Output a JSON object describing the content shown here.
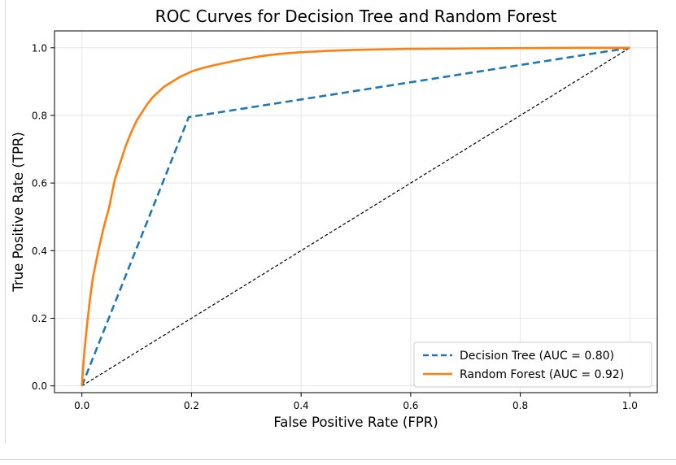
{
  "chart_data": {
    "type": "line",
    "title": "ROC Curves for Decision Tree and Random Forest",
    "xlabel": "False Positive Rate (FPR)",
    "ylabel": "True Positive Rate (TPR)",
    "xlim": [
      -0.05,
      1.05
    ],
    "ylim": [
      -0.02,
      1.05
    ],
    "xticks": [
      0.0,
      0.2,
      0.4,
      0.6,
      0.8,
      1.0
    ],
    "yticks": [
      0.0,
      0.2,
      0.4,
      0.6,
      0.8,
      1.0
    ],
    "xtick_labels": [
      "0.0",
      "0.2",
      "0.4",
      "0.6",
      "0.8",
      "1.0"
    ],
    "ytick_labels": [
      "0.0",
      "0.2",
      "0.4",
      "0.6",
      "0.8",
      "1.0"
    ],
    "grid": true,
    "legend_position": "lower-right",
    "series": [
      {
        "name": "Decision Tree (AUC = 0.80)",
        "color": "#1f77b4",
        "style": "dashed",
        "x": [
          0.0,
          0.195,
          1.0
        ],
        "y": [
          0.0,
          0.795,
          1.0
        ]
      },
      {
        "name": "Random Forest (AUC = 0.92)",
        "color": "#ff7f0e",
        "style": "solid",
        "x": [
          0.0,
          0.002,
          0.005,
          0.01,
          0.015,
          0.02,
          0.03,
          0.04,
          0.05,
          0.06,
          0.07,
          0.08,
          0.09,
          0.1,
          0.11,
          0.12,
          0.13,
          0.14,
          0.15,
          0.16,
          0.17,
          0.18,
          0.19,
          0.2,
          0.22,
          0.24,
          0.26,
          0.28,
          0.3,
          0.33,
          0.36,
          0.4,
          0.45,
          0.5,
          0.6,
          0.7,
          0.8,
          0.9,
          1.0
        ],
        "y": [
          0.0,
          0.05,
          0.11,
          0.19,
          0.26,
          0.32,
          0.4,
          0.47,
          0.53,
          0.61,
          0.66,
          0.71,
          0.75,
          0.785,
          0.81,
          0.835,
          0.855,
          0.87,
          0.885,
          0.895,
          0.905,
          0.915,
          0.922,
          0.93,
          0.94,
          0.948,
          0.955,
          0.962,
          0.968,
          0.976,
          0.982,
          0.987,
          0.991,
          0.994,
          0.997,
          0.998,
          0.999,
          1.0,
          1.0
        ]
      },
      {
        "color": "#000000",
        "style": "dashed-thin",
        "x": [
          0.0,
          1.0
        ],
        "y": [
          0.0,
          1.0
        ]
      }
    ]
  }
}
